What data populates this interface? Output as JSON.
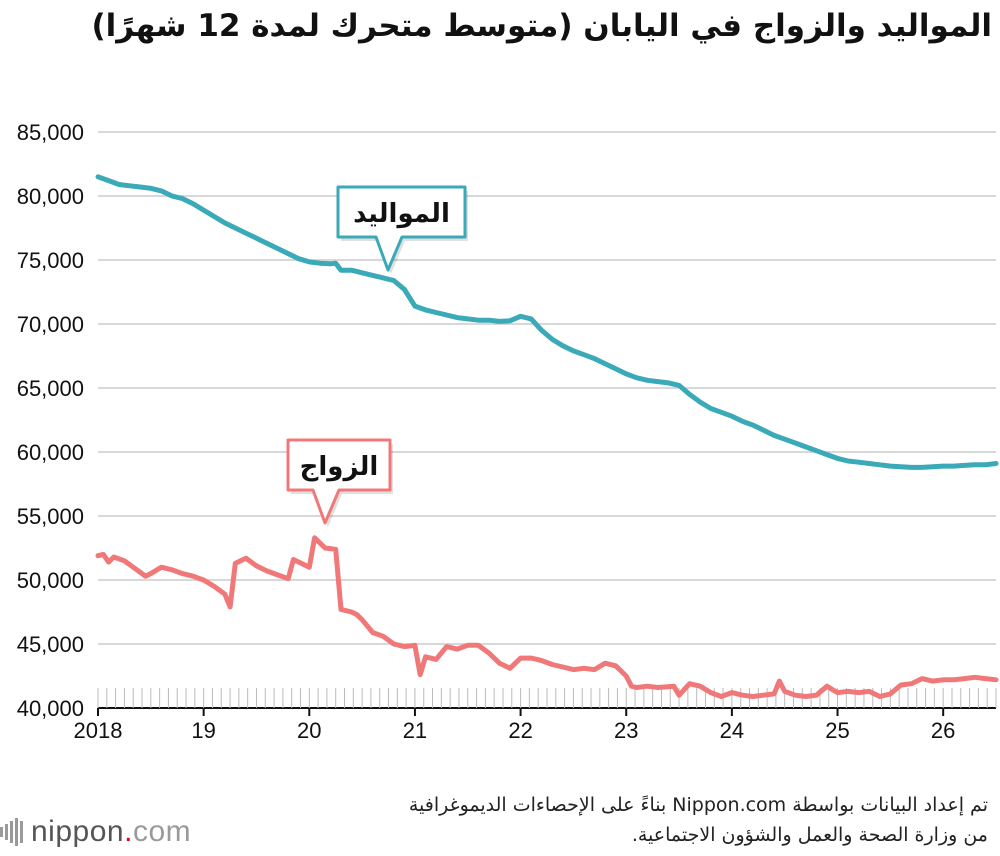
{
  "chart_data": {
    "type": "line",
    "title": "المواليد والزواج في اليابان (متوسط متحرك لمدة 12 شهرًا)",
    "xlabel": "",
    "ylabel": "",
    "ylim": [
      40000,
      85000
    ],
    "xlim": [
      2018,
      2026.5
    ],
    "grid": true,
    "legend": "none",
    "y_ticks": [
      "40,000",
      "45,000",
      "50,000",
      "55,000",
      "60,000",
      "65,000",
      "70,000",
      "75,000",
      "80,000",
      "85,000"
    ],
    "x_ticks": [
      "2018",
      "19",
      "20",
      "21",
      "22",
      "23",
      "24",
      "25",
      "26"
    ],
    "series": [
      {
        "name": "المواليد",
        "color": "#3aa9b8",
        "points": [
          [
            2018.0,
            81500
          ],
          [
            2018.1,
            81200
          ],
          [
            2018.2,
            80900
          ],
          [
            2018.3,
            80800
          ],
          [
            2018.4,
            80700
          ],
          [
            2018.5,
            80600
          ],
          [
            2018.6,
            80400
          ],
          [
            2018.7,
            80000
          ],
          [
            2018.8,
            79800
          ],
          [
            2018.9,
            79400
          ],
          [
            2019.0,
            78900
          ],
          [
            2019.1,
            78400
          ],
          [
            2019.2,
            77900
          ],
          [
            2019.3,
            77500
          ],
          [
            2019.4,
            77100
          ],
          [
            2019.5,
            76700
          ],
          [
            2019.6,
            76300
          ],
          [
            2019.7,
            75900
          ],
          [
            2019.8,
            75500
          ],
          [
            2019.9,
            75100
          ],
          [
            2020.0,
            74850
          ],
          [
            2020.1,
            74750
          ],
          [
            2020.2,
            74700
          ],
          [
            2020.25,
            74750
          ],
          [
            2020.3,
            74200
          ],
          [
            2020.4,
            74200
          ],
          [
            2020.5,
            74000
          ],
          [
            2020.6,
            73800
          ],
          [
            2020.7,
            73600
          ],
          [
            2020.8,
            73400
          ],
          [
            2020.9,
            72700
          ],
          [
            2021.0,
            71400
          ],
          [
            2021.1,
            71100
          ],
          [
            2021.2,
            70900
          ],
          [
            2021.3,
            70700
          ],
          [
            2021.4,
            70500
          ],
          [
            2021.5,
            70400
          ],
          [
            2021.6,
            70300
          ],
          [
            2021.7,
            70300
          ],
          [
            2021.8,
            70200
          ],
          [
            2021.9,
            70250
          ],
          [
            2022.0,
            70600
          ],
          [
            2022.1,
            70400
          ],
          [
            2022.2,
            69500
          ],
          [
            2022.3,
            68800
          ],
          [
            2022.4,
            68300
          ],
          [
            2022.5,
            67900
          ],
          [
            2022.6,
            67600
          ],
          [
            2022.7,
            67300
          ],
          [
            2022.8,
            66900
          ],
          [
            2022.9,
            66500
          ],
          [
            2023.0,
            66100
          ],
          [
            2023.1,
            65800
          ],
          [
            2023.2,
            65600
          ],
          [
            2023.3,
            65500
          ],
          [
            2023.4,
            65400
          ],
          [
            2023.5,
            65200
          ],
          [
            2023.6,
            64500
          ],
          [
            2023.7,
            63900
          ],
          [
            2023.8,
            63400
          ],
          [
            2023.9,
            63100
          ],
          [
            2024.0,
            62800
          ],
          [
            2024.1,
            62400
          ],
          [
            2024.2,
            62100
          ],
          [
            2024.3,
            61700
          ],
          [
            2024.4,
            61300
          ],
          [
            2024.5,
            61000
          ],
          [
            2024.6,
            60700
          ],
          [
            2024.7,
            60400
          ],
          [
            2024.8,
            60100
          ],
          [
            2024.9,
            59800
          ],
          [
            2025.0,
            59500
          ],
          [
            2025.1,
            59300
          ],
          [
            2025.2,
            59200
          ],
          [
            2025.3,
            59100
          ],
          [
            2025.4,
            59000
          ],
          [
            2025.5,
            58900
          ],
          [
            2025.6,
            58850
          ],
          [
            2025.7,
            58800
          ],
          [
            2025.8,
            58800
          ],
          [
            2025.9,
            58850
          ],
          [
            2026.0,
            58900
          ],
          [
            2026.1,
            58900
          ],
          [
            2026.2,
            58950
          ],
          [
            2026.3,
            59000
          ],
          [
            2026.4,
            59000
          ],
          [
            2026.5,
            59100
          ]
        ]
      },
      {
        "name": "الزواج",
        "color": "#f07878",
        "points": [
          [
            2018.0,
            51900
          ],
          [
            2018.05,
            52000
          ],
          [
            2018.1,
            51400
          ],
          [
            2018.15,
            51800
          ],
          [
            2018.25,
            51500
          ],
          [
            2018.35,
            50900
          ],
          [
            2018.45,
            50300
          ],
          [
            2018.5,
            50500
          ],
          [
            2018.6,
            51000
          ],
          [
            2018.7,
            50800
          ],
          [
            2018.8,
            50500
          ],
          [
            2018.9,
            50300
          ],
          [
            2019.0,
            50000
          ],
          [
            2019.1,
            49500
          ],
          [
            2019.2,
            48900
          ],
          [
            2019.25,
            47900
          ],
          [
            2019.3,
            51300
          ],
          [
            2019.4,
            51700
          ],
          [
            2019.5,
            51100
          ],
          [
            2019.6,
            50700
          ],
          [
            2019.7,
            50400
          ],
          [
            2019.8,
            50100
          ],
          [
            2019.85,
            51600
          ],
          [
            2019.95,
            51200
          ],
          [
            2020.0,
            51000
          ],
          [
            2020.05,
            53300
          ],
          [
            2020.15,
            52500
          ],
          [
            2020.25,
            52400
          ],
          [
            2020.3,
            47700
          ],
          [
            2020.4,
            47500
          ],
          [
            2020.45,
            47300
          ],
          [
            2020.5,
            46900
          ],
          [
            2020.6,
            45900
          ],
          [
            2020.7,
            45600
          ],
          [
            2020.8,
            45000
          ],
          [
            2020.9,
            44800
          ],
          [
            2021.0,
            44900
          ],
          [
            2021.05,
            42600
          ],
          [
            2021.1,
            44000
          ],
          [
            2021.2,
            43800
          ],
          [
            2021.3,
            44800
          ],
          [
            2021.4,
            44600
          ],
          [
            2021.5,
            44900
          ],
          [
            2021.6,
            44900
          ],
          [
            2021.7,
            44300
          ],
          [
            2021.8,
            43500
          ],
          [
            2021.9,
            43100
          ],
          [
            2022.0,
            43900
          ],
          [
            2022.1,
            43900
          ],
          [
            2022.2,
            43700
          ],
          [
            2022.3,
            43400
          ],
          [
            2022.4,
            43200
          ],
          [
            2022.5,
            43000
          ],
          [
            2022.6,
            43100
          ],
          [
            2022.7,
            43000
          ],
          [
            2022.8,
            43500
          ],
          [
            2022.9,
            43300
          ],
          [
            2023.0,
            42500
          ],
          [
            2023.05,
            41700
          ],
          [
            2023.1,
            41600
          ],
          [
            2023.2,
            41700
          ],
          [
            2023.3,
            41600
          ],
          [
            2023.45,
            41700
          ],
          [
            2023.5,
            41000
          ],
          [
            2023.6,
            41900
          ],
          [
            2023.7,
            41700
          ],
          [
            2023.8,
            41200
          ],
          [
            2023.9,
            40900
          ],
          [
            2024.0,
            41200
          ],
          [
            2024.1,
            41000
          ],
          [
            2024.2,
            40900
          ],
          [
            2024.3,
            41000
          ],
          [
            2024.4,
            41100
          ],
          [
            2024.45,
            42100
          ],
          [
            2024.5,
            41300
          ],
          [
            2024.6,
            41000
          ],
          [
            2024.7,
            40900
          ],
          [
            2024.8,
            41000
          ],
          [
            2024.9,
            41700
          ],
          [
            2025.0,
            41200
          ],
          [
            2025.1,
            41300
          ],
          [
            2025.2,
            41200
          ],
          [
            2025.3,
            41300
          ],
          [
            2025.4,
            40900
          ],
          [
            2025.5,
            41100
          ],
          [
            2025.6,
            41800
          ],
          [
            2025.7,
            41900
          ],
          [
            2025.8,
            42300
          ],
          [
            2025.9,
            42100
          ],
          [
            2026.0,
            42200
          ],
          [
            2026.1,
            42200
          ],
          [
            2026.2,
            42300
          ],
          [
            2026.3,
            42400
          ],
          [
            2026.4,
            42300
          ],
          [
            2026.5,
            42200
          ]
        ]
      }
    ]
  },
  "source_note": {
    "line1": "تم إعداد البيانات بواسطة Nippon.com بناءً على الإحصاءات الديموغرافية",
    "line2": "من وزارة الصحة والعمل والشؤون الاجتماعية."
  },
  "logo": {
    "word": "nippon",
    "dot": ".",
    "suffix": "com"
  },
  "colors": {
    "grid": "#cccccc",
    "axis": "#111111"
  }
}
